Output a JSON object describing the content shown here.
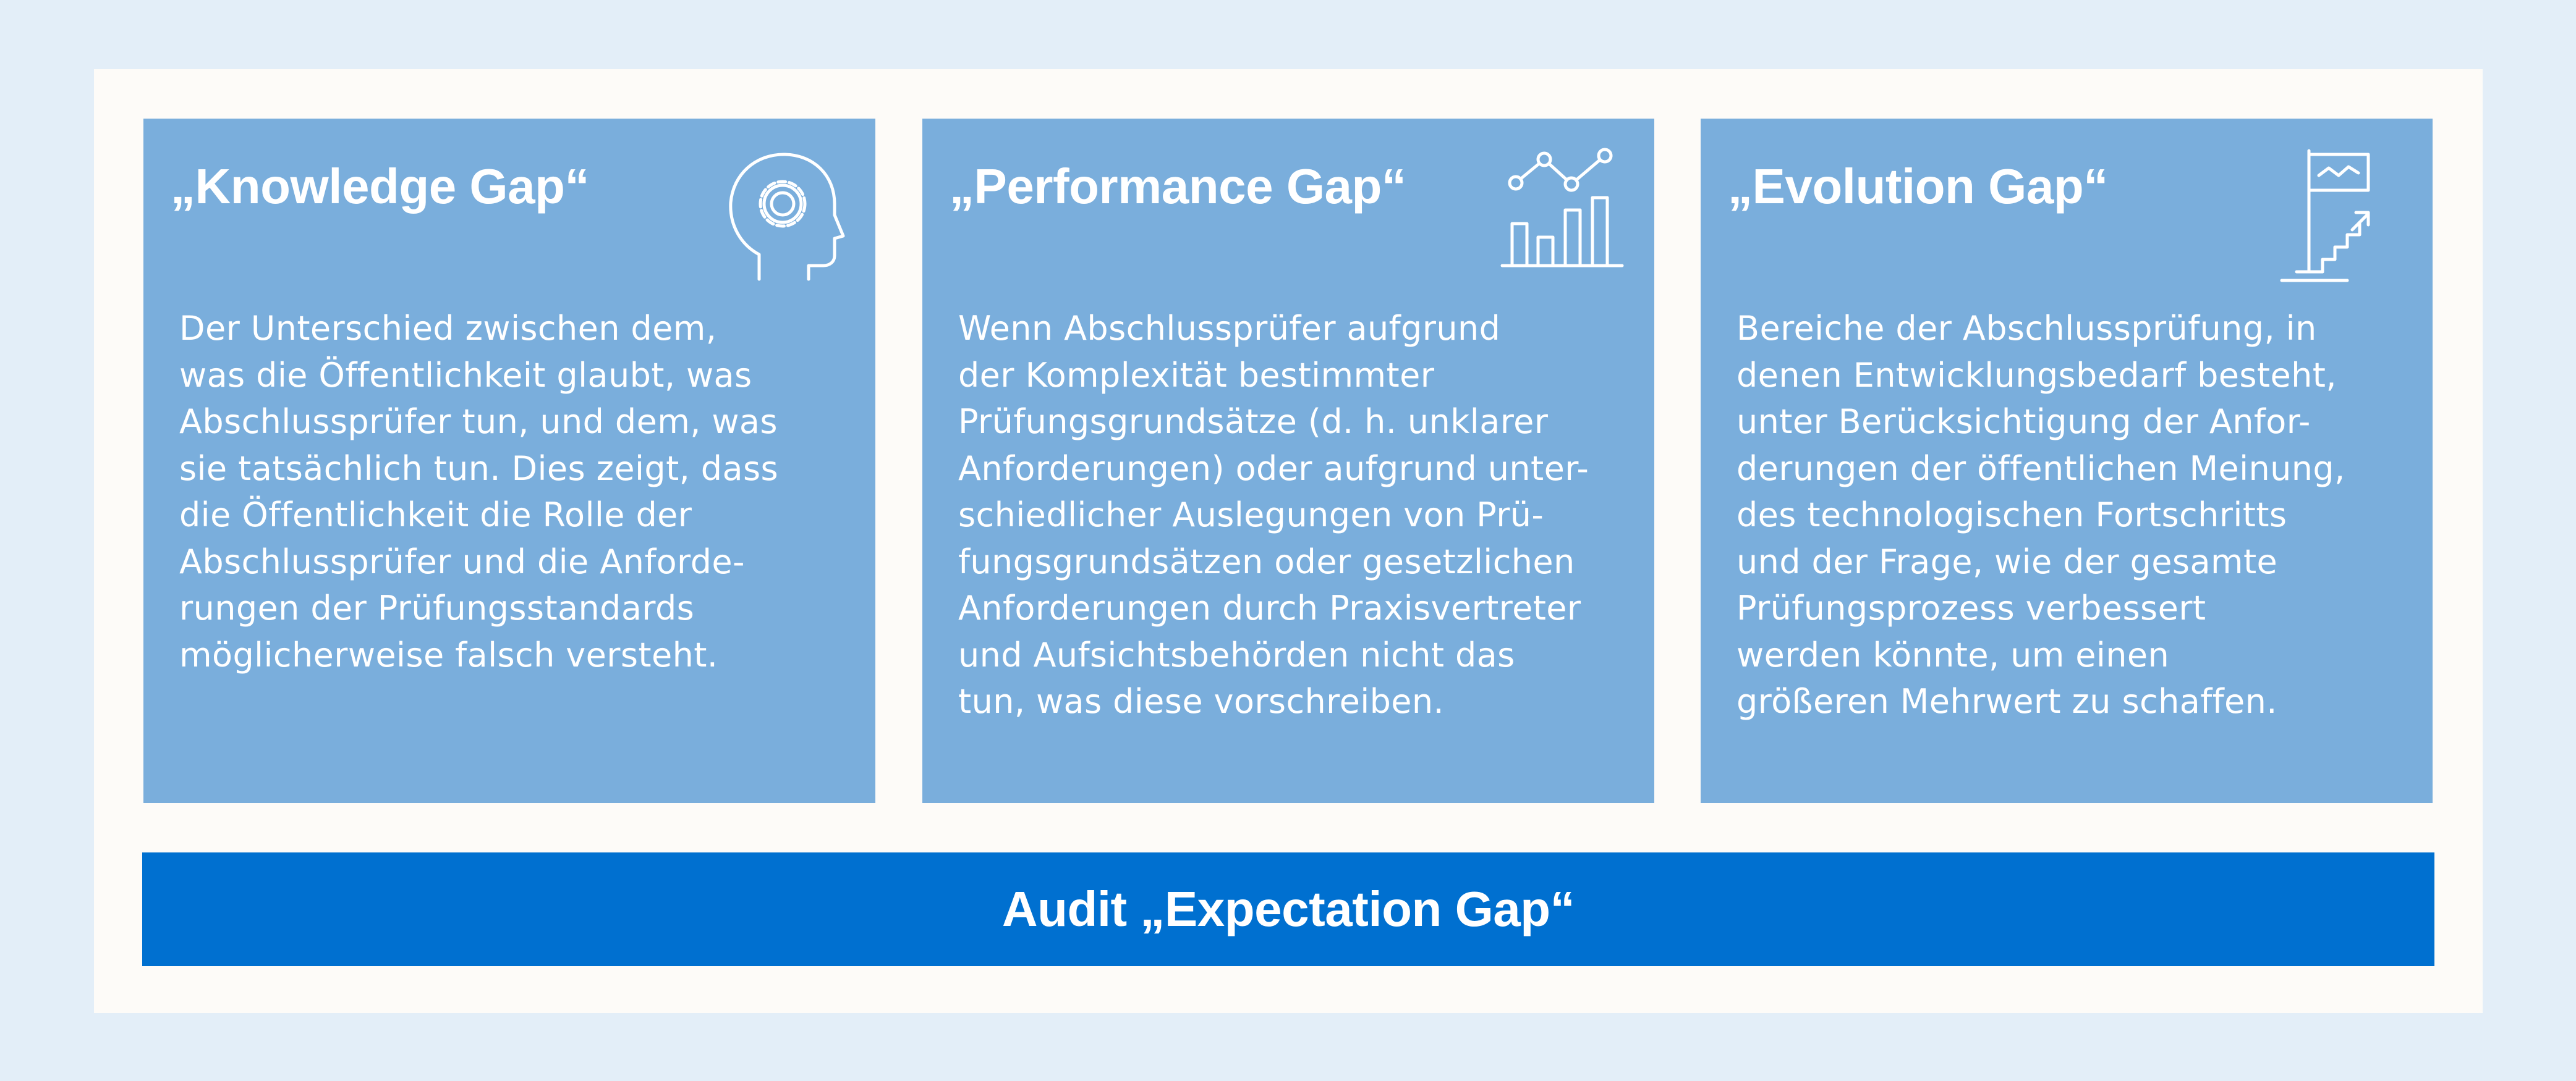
{
  "cards": [
    {
      "title": "„Knowledge Gap“",
      "icon": "head-gear-icon",
      "text": "Der Unterschied zwischen dem,\nwas die Öffentlichkeit glaubt, was\nAbschlussprüfer tun, und dem, was\nsie tatsächlich tun. Dies zeigt, dass\ndie Öffentlichkeit die Rolle der\n Abschlussprüfer und die Anforde-\nrungen der Prüfungsstandards\nmöglicherweise falsch versteht."
    },
    {
      "title": "„Performance Gap“",
      "icon": "bar-line-chart-icon",
      "text": "Wenn Abschlussprüfer aufgrund\nder Komplexität bestimmter\nPrüfungsgrundsätze (d. h. unklarer\nAnforderungen) oder aufgrund unter-\nschiedlicher Auslegungen von Prü-\nfungsgrundsätzen oder gesetzlichen\nAnforderungen durch Praxisvertreter\nund Aufsichtsbehörden nicht das\ntun, was diese vorschreiben."
    },
    {
      "title": "„Evolution Gap“",
      "icon": "flag-stairs-icon",
      "text": "Bereiche der Abschlussprüfung, in\ndenen Entwicklungsbedarf besteht,\nunter Berücksichtigung der Anfor-\nderungen der öffentlichen Meinung,\ndes technologischen Fortschritts\nund der Frage, wie der gesamte\nPrüfungsprozess verbessert\nwerden könnte, um einen\ngrößeren Mehrwert zu schaffen."
    }
  ],
  "bottom": {
    "label": "Audit „Expectation Gap“"
  },
  "colors": {
    "background": "#e3eef8",
    "frame": "#fdfbf8",
    "card": "#7aaedc",
    "bar": "#0070d0",
    "text": "#ffffff"
  }
}
